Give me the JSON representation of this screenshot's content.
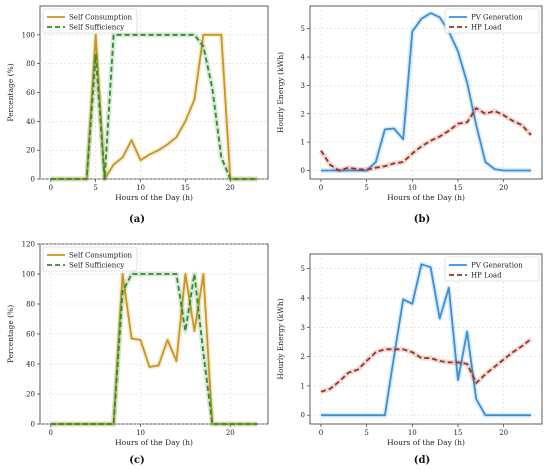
{
  "chart_data": [
    {
      "id": "a",
      "type": "line",
      "caption": "(a)",
      "xlabel": "Hours of the Day (h)",
      "ylabel": "Percentage (%)",
      "xlim": [
        -1.2,
        24.2
      ],
      "ylim": [
        0,
        120
      ],
      "xticks": [
        0,
        5,
        10,
        15,
        20
      ],
      "yticks": [
        0,
        20,
        40,
        60,
        80,
        100
      ],
      "grid": true,
      "legend": "top-left",
      "x": [
        0,
        1,
        2,
        3,
        4,
        5,
        6,
        7,
        8,
        9,
        10,
        11,
        12,
        13,
        14,
        15,
        16,
        17,
        18,
        19,
        20,
        21,
        22,
        23
      ],
      "series": [
        {
          "name": "Self Consumption",
          "color": "#c8961e",
          "dash": "solid",
          "values": [
            0,
            0,
            0,
            0,
            0,
            100,
            0,
            10,
            15,
            27,
            13,
            17,
            20,
            24,
            29,
            40,
            55,
            100,
            100,
            100,
            0,
            0,
            0,
            0
          ]
        },
        {
          "name": "Self Sufficiency",
          "color": "#2e8b2e",
          "dash": "dashed",
          "values": [
            0,
            0,
            0,
            0,
            0,
            86,
            0,
            100,
            100,
            100,
            100,
            100,
            100,
            100,
            100,
            100,
            100,
            92,
            63,
            15,
            0,
            0,
            0,
            0
          ]
        }
      ]
    },
    {
      "id": "b",
      "type": "line",
      "caption": "(b)",
      "xlabel": "Hours of the Day (h)",
      "ylabel": "Hourly Energy (kWh)",
      "xlim": [
        -1.2,
        24.2
      ],
      "ylim": [
        -0.3,
        5.8
      ],
      "xticks": [
        0,
        5,
        10,
        15,
        20
      ],
      "yticks": [
        0,
        1,
        2,
        3,
        4,
        5
      ],
      "grid": true,
      "legend": "top-right",
      "x": [
        0,
        1,
        2,
        3,
        4,
        5,
        6,
        7,
        8,
        9,
        10,
        11,
        12,
        13,
        14,
        15,
        16,
        17,
        18,
        19,
        20,
        21,
        22,
        23
      ],
      "series": [
        {
          "name": "PV Generation",
          "color": "#3a8fd9",
          "dash": "solid",
          "values": [
            0,
            0,
            0,
            0,
            0,
            0,
            0.3,
            1.45,
            1.48,
            1.1,
            4.9,
            5.35,
            5.55,
            5.4,
            4.9,
            4.2,
            3.1,
            1.6,
            0.3,
            0.05,
            0,
            0,
            0,
            0
          ]
        },
        {
          "name": "HP Load",
          "color": "#a0301c",
          "dash": "dashed",
          "values": [
            0.7,
            0.2,
            0,
            0.1,
            0.05,
            0.02,
            0.1,
            0.15,
            0.25,
            0.3,
            0.6,
            0.85,
            1.05,
            1.2,
            1.4,
            1.65,
            1.7,
            2.2,
            2.0,
            2.1,
            1.95,
            1.75,
            1.6,
            1.25
          ]
        }
      ]
    },
    {
      "id": "c",
      "type": "line",
      "caption": "(c)",
      "xlabel": "Hours of the Day (h)",
      "ylabel": "Percentage (%)",
      "xlim": [
        -1.2,
        24.2
      ],
      "ylim": [
        0,
        120
      ],
      "xticks": [
        0,
        10,
        20
      ],
      "yticks": [
        0,
        20,
        40,
        60,
        80,
        100,
        120
      ],
      "grid": true,
      "legend": "top-left",
      "x": [
        0,
        1,
        2,
        3,
        4,
        5,
        6,
        7,
        8,
        9,
        10,
        11,
        12,
        13,
        14,
        15,
        16,
        17,
        18,
        19,
        20,
        21,
        22,
        23
      ],
      "series": [
        {
          "name": "Self Consumption",
          "color": "#c8961e",
          "dash": "solid",
          "values": [
            0,
            0,
            0,
            0,
            0,
            0,
            0,
            0,
            100,
            57,
            56,
            38,
            39,
            56,
            42,
            100,
            62,
            100,
            0,
            0,
            0,
            0,
            0,
            0
          ]
        },
        {
          "name": "Self Sufficiency",
          "color": "#2e8b2e",
          "dash": "dashed",
          "values": [
            0,
            0,
            0,
            0,
            0,
            0,
            0,
            0,
            88,
            100,
            100,
            100,
            100,
            100,
            100,
            62,
            100,
            47,
            0,
            0,
            0,
            0,
            0,
            0
          ]
        }
      ]
    },
    {
      "id": "d",
      "type": "line",
      "caption": "(d)",
      "xlabel": "Hours of the Day (h)",
      "ylabel": "Hourly Energy (kWh)",
      "xlim": [
        -1.2,
        24.2
      ],
      "ylim": [
        -0.3,
        5.5
      ],
      "xticks": [
        0,
        5,
        10,
        15,
        20
      ],
      "yticks": [
        0,
        1,
        2,
        3,
        4,
        5
      ],
      "grid": true,
      "legend": "top-right",
      "x": [
        0,
        1,
        2,
        3,
        4,
        5,
        6,
        7,
        8,
        9,
        10,
        11,
        12,
        13,
        14,
        15,
        16,
        17,
        18,
        19,
        20,
        21,
        22,
        23
      ],
      "series": [
        {
          "name": "PV Generation",
          "color": "#3a8fd9",
          "dash": "solid",
          "values": [
            0,
            0,
            0,
            0,
            0,
            0,
            0,
            0,
            2.0,
            3.95,
            3.8,
            5.15,
            5.05,
            3.3,
            4.35,
            1.2,
            2.85,
            0.55,
            0,
            0,
            0,
            0,
            0,
            0
          ]
        },
        {
          "name": "HP Load",
          "color": "#a0301c",
          "dash": "dashed",
          "values": [
            0.8,
            0.9,
            1.15,
            1.45,
            1.55,
            1.85,
            2.15,
            2.25,
            2.25,
            2.25,
            2.15,
            1.95,
            1.95,
            1.85,
            1.8,
            1.8,
            1.75,
            1.1,
            1.4,
            1.65,
            1.9,
            2.15,
            2.35,
            2.6
          ]
        }
      ]
    }
  ]
}
